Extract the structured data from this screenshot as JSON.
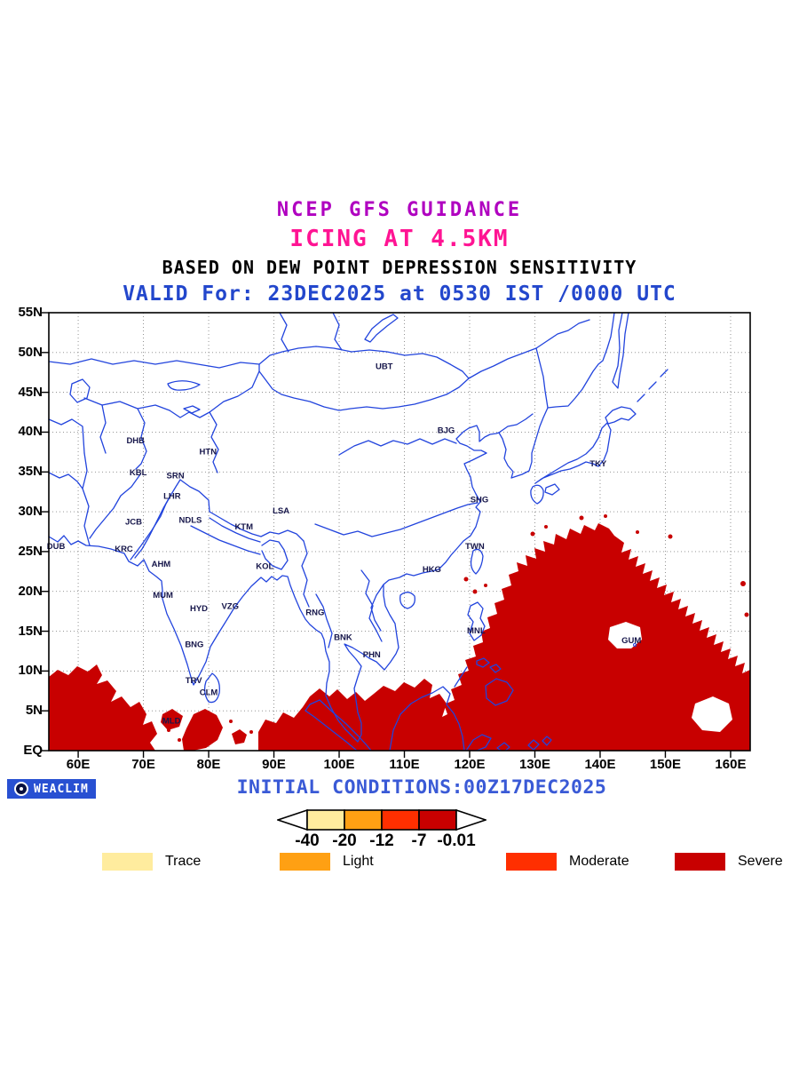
{
  "titles": {
    "line1": "NCEP GFS GUIDANCE",
    "line2": "ICING AT 4.5KM",
    "line3": "BASED ON DEW POINT DEPRESSION SENSITIVITY",
    "valid_line": "VALID For: 23DEC2025 at 0530 IST /0000 UTC"
  },
  "colors": {
    "title1": "#B000C0",
    "title2": "#FF1493",
    "title3": "#000000",
    "valid": "#2347CC",
    "initial": "#3A5AD6",
    "coast": "#2244DD",
    "grid": "#888888",
    "station": "#16164A",
    "map_border": "#000000",
    "severe": "#C80000",
    "moderate": "#FF2F00",
    "light": "#FFA013",
    "trace": "#FFEC9E",
    "logo_bg": "#2850D2"
  },
  "map": {
    "lat_labels": [
      "55N",
      "50N",
      "45N",
      "40N",
      "35N",
      "30N",
      "25N",
      "20N",
      "15N",
      "10N",
      "5N",
      "EQ"
    ],
    "lat_values": [
      55,
      50,
      45,
      40,
      35,
      30,
      25,
      20,
      15,
      10,
      5,
      0
    ],
    "lon_labels": [
      "60E",
      "70E",
      "80E",
      "90E",
      "100E",
      "110E",
      "120E",
      "130E",
      "140E",
      "150E",
      "160E"
    ],
    "lon_values": [
      60,
      70,
      80,
      90,
      100,
      110,
      120,
      130,
      140,
      150,
      160
    ],
    "stations": [
      {
        "label": "UBT",
        "lon": 106.9,
        "lat": 47.9
      },
      {
        "label": "BJG",
        "lon": 116.4,
        "lat": 39.9
      },
      {
        "label": "TKY",
        "lon": 139.7,
        "lat": 35.7
      },
      {
        "label": "SHG",
        "lon": 121.5,
        "lat": 31.2
      },
      {
        "label": "TWN",
        "lon": 120.8,
        "lat": 25.3
      },
      {
        "label": "HKG",
        "lon": 114.2,
        "lat": 22.4
      },
      {
        "label": "MNL",
        "lon": 121.0,
        "lat": 14.7
      },
      {
        "label": "GUM",
        "lon": 144.8,
        "lat": 13.5
      },
      {
        "label": "DHB",
        "lon": 68.8,
        "lat": 38.6
      },
      {
        "label": "HTN",
        "lon": 79.9,
        "lat": 37.2
      },
      {
        "label": "KBL",
        "lon": 69.2,
        "lat": 34.6
      },
      {
        "label": "SRN",
        "lon": 74.9,
        "lat": 34.2
      },
      {
        "label": "LHR",
        "lon": 74.4,
        "lat": 31.6
      },
      {
        "label": "JCB",
        "lon": 68.5,
        "lat": 28.4
      },
      {
        "label": "NDLS",
        "lon": 77.2,
        "lat": 28.6
      },
      {
        "label": "KTM",
        "lon": 85.4,
        "lat": 27.8
      },
      {
        "label": "LSA",
        "lon": 91.1,
        "lat": 29.8
      },
      {
        "label": "DUB",
        "lon": 56.6,
        "lat": 25.3
      },
      {
        "label": "KRC",
        "lon": 67.0,
        "lat": 25.0
      },
      {
        "label": "AHM",
        "lon": 72.7,
        "lat": 23.1
      },
      {
        "label": "MUM",
        "lon": 73.0,
        "lat": 19.2
      },
      {
        "label": "HYD",
        "lon": 78.5,
        "lat": 17.5
      },
      {
        "label": "VZG",
        "lon": 83.3,
        "lat": 17.8
      },
      {
        "label": "KOL",
        "lon": 88.6,
        "lat": 22.8
      },
      {
        "label": "RNG",
        "lon": 96.3,
        "lat": 17.0
      },
      {
        "label": "BNG",
        "lon": 77.8,
        "lat": 13.0
      },
      {
        "label": "BNK",
        "lon": 100.6,
        "lat": 13.9
      },
      {
        "label": "PHN",
        "lon": 105.0,
        "lat": 11.7
      },
      {
        "label": "TRV",
        "lon": 77.7,
        "lat": 8.5
      },
      {
        "label": "CLM",
        "lon": 80.0,
        "lat": 7.0
      },
      {
        "label": "MLD",
        "lon": 74.3,
        "lat": 3.4
      }
    ]
  },
  "colorbar": {
    "tick_labels": [
      "-40",
      "-20",
      "-12",
      "-7",
      "-0.01"
    ],
    "segments": [
      {
        "name": "trace",
        "color": "#FFEC9E"
      },
      {
        "name": "light",
        "color": "#FFA013"
      },
      {
        "name": "moderate",
        "color": "#FF2F00"
      },
      {
        "name": "severe",
        "color": "#C80000"
      }
    ]
  },
  "legend": {
    "items": [
      {
        "label": "Trace",
        "color": "#FFEC9E"
      },
      {
        "label": "Light",
        "color": "#FFA013"
      },
      {
        "label": "Moderate",
        "color": "#FF2F00"
      },
      {
        "label": "Severe",
        "color": "#C80000"
      }
    ]
  },
  "footer": {
    "logo_text": "WEACLIM",
    "initial_conditions": "INITIAL CONDITIONS:00Z17DEC2025"
  }
}
